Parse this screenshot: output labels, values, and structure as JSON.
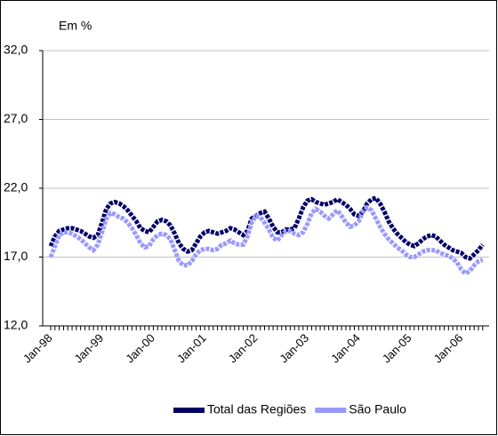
{
  "chart_data": {
    "type": "line",
    "y_unit_label": "Em %",
    "categories": [
      "Jan-98",
      null,
      null,
      null,
      null,
      null,
      null,
      null,
      null,
      null,
      null,
      null,
      "Jan-99",
      null,
      null,
      null,
      null,
      null,
      null,
      null,
      null,
      null,
      null,
      null,
      "Jan-00",
      null,
      null,
      null,
      null,
      null,
      null,
      null,
      null,
      null,
      null,
      null,
      "Jan-01",
      null,
      null,
      null,
      null,
      null,
      null,
      null,
      null,
      null,
      null,
      null,
      "Jan-02",
      null,
      null,
      null,
      null,
      null,
      null,
      null,
      null,
      null,
      null,
      null,
      "Jan-03",
      null,
      null,
      null,
      null,
      null,
      null,
      null,
      null,
      null,
      null,
      null,
      "Jan-04",
      null,
      null,
      null,
      null,
      null,
      null,
      null,
      null,
      null,
      null,
      null,
      "Jan-05",
      null,
      null,
      null,
      null,
      null,
      null,
      null,
      null,
      null,
      null,
      null,
      "Jan-06",
      null,
      null,
      null,
      null,
      null
    ],
    "series": [
      {
        "name": "Total das Regiões",
        "color": "#000066",
        "values": [
          17.8,
          18.5,
          18.9,
          19.0,
          19.1,
          19.1,
          19.0,
          18.9,
          18.7,
          18.5,
          18.4,
          18.6,
          19.5,
          20.5,
          20.9,
          21.0,
          20.9,
          20.7,
          20.4,
          20.0,
          19.6,
          19.1,
          18.9,
          18.8,
          19.2,
          19.6,
          19.7,
          19.6,
          19.3,
          18.7,
          18.0,
          17.6,
          17.4,
          17.5,
          18.0,
          18.5,
          18.8,
          18.9,
          18.8,
          18.7,
          18.8,
          18.9,
          19.1,
          19.0,
          18.8,
          18.6,
          18.9,
          19.8,
          20.0,
          20.2,
          20.3,
          19.8,
          19.2,
          18.8,
          18.8,
          19.0,
          19.0,
          19.1,
          19.8,
          20.6,
          21.1,
          21.2,
          21.0,
          20.9,
          20.8,
          20.9,
          21.0,
          21.2,
          21.0,
          20.8,
          20.5,
          20.1,
          20.0,
          20.3,
          20.9,
          21.2,
          21.3,
          20.9,
          20.3,
          19.6,
          19.1,
          18.7,
          18.4,
          18.1,
          17.9,
          17.8,
          18.0,
          18.3,
          18.5,
          18.6,
          18.5,
          18.2,
          17.9,
          17.7,
          17.5,
          17.4,
          17.3,
          17.0,
          16.9,
          17.2,
          17.5,
          17.9
        ]
      },
      {
        "name": "São Paulo",
        "color": "#9999ff",
        "values": [
          17.0,
          17.8,
          18.6,
          18.8,
          18.8,
          18.7,
          18.5,
          18.3,
          18.0,
          17.7,
          17.5,
          17.9,
          18.8,
          19.8,
          20.2,
          20.1,
          19.9,
          19.8,
          19.5,
          19.1,
          18.6,
          18.0,
          17.7,
          17.8,
          18.3,
          18.6,
          18.7,
          18.6,
          18.3,
          17.5,
          16.7,
          16.4,
          16.4,
          16.7,
          17.2,
          17.5,
          17.6,
          17.6,
          17.5,
          17.6,
          17.9,
          18.0,
          18.2,
          18.0,
          17.9,
          17.9,
          18.5,
          19.5,
          20.0,
          19.9,
          19.5,
          19.0,
          18.4,
          18.2,
          18.6,
          18.9,
          18.9,
          18.7,
          18.6,
          18.8,
          19.4,
          20.2,
          20.5,
          20.3,
          20.0,
          19.8,
          20.1,
          20.4,
          20.0,
          19.5,
          19.2,
          19.3,
          19.6,
          20.3,
          20.6,
          20.4,
          19.8,
          19.2,
          18.7,
          18.3,
          18.0,
          17.7,
          17.5,
          17.2,
          17.0,
          17.0,
          17.2,
          17.4,
          17.5,
          17.5,
          17.5,
          17.3,
          17.2,
          17.1,
          16.9,
          16.6,
          16.1,
          15.8,
          16.0,
          16.4,
          16.7,
          16.8
        ]
      }
    ],
    "ylim": [
      12,
      32
    ],
    "yticks": [
      {
        "value": 12,
        "label": "12,0"
      },
      {
        "value": 17,
        "label": "17,0"
      },
      {
        "value": 22,
        "label": "22,0"
      },
      {
        "value": 27,
        "label": "27,0"
      },
      {
        "value": 32,
        "label": "32,0"
      }
    ],
    "grid": true,
    "legend": "bottom"
  }
}
